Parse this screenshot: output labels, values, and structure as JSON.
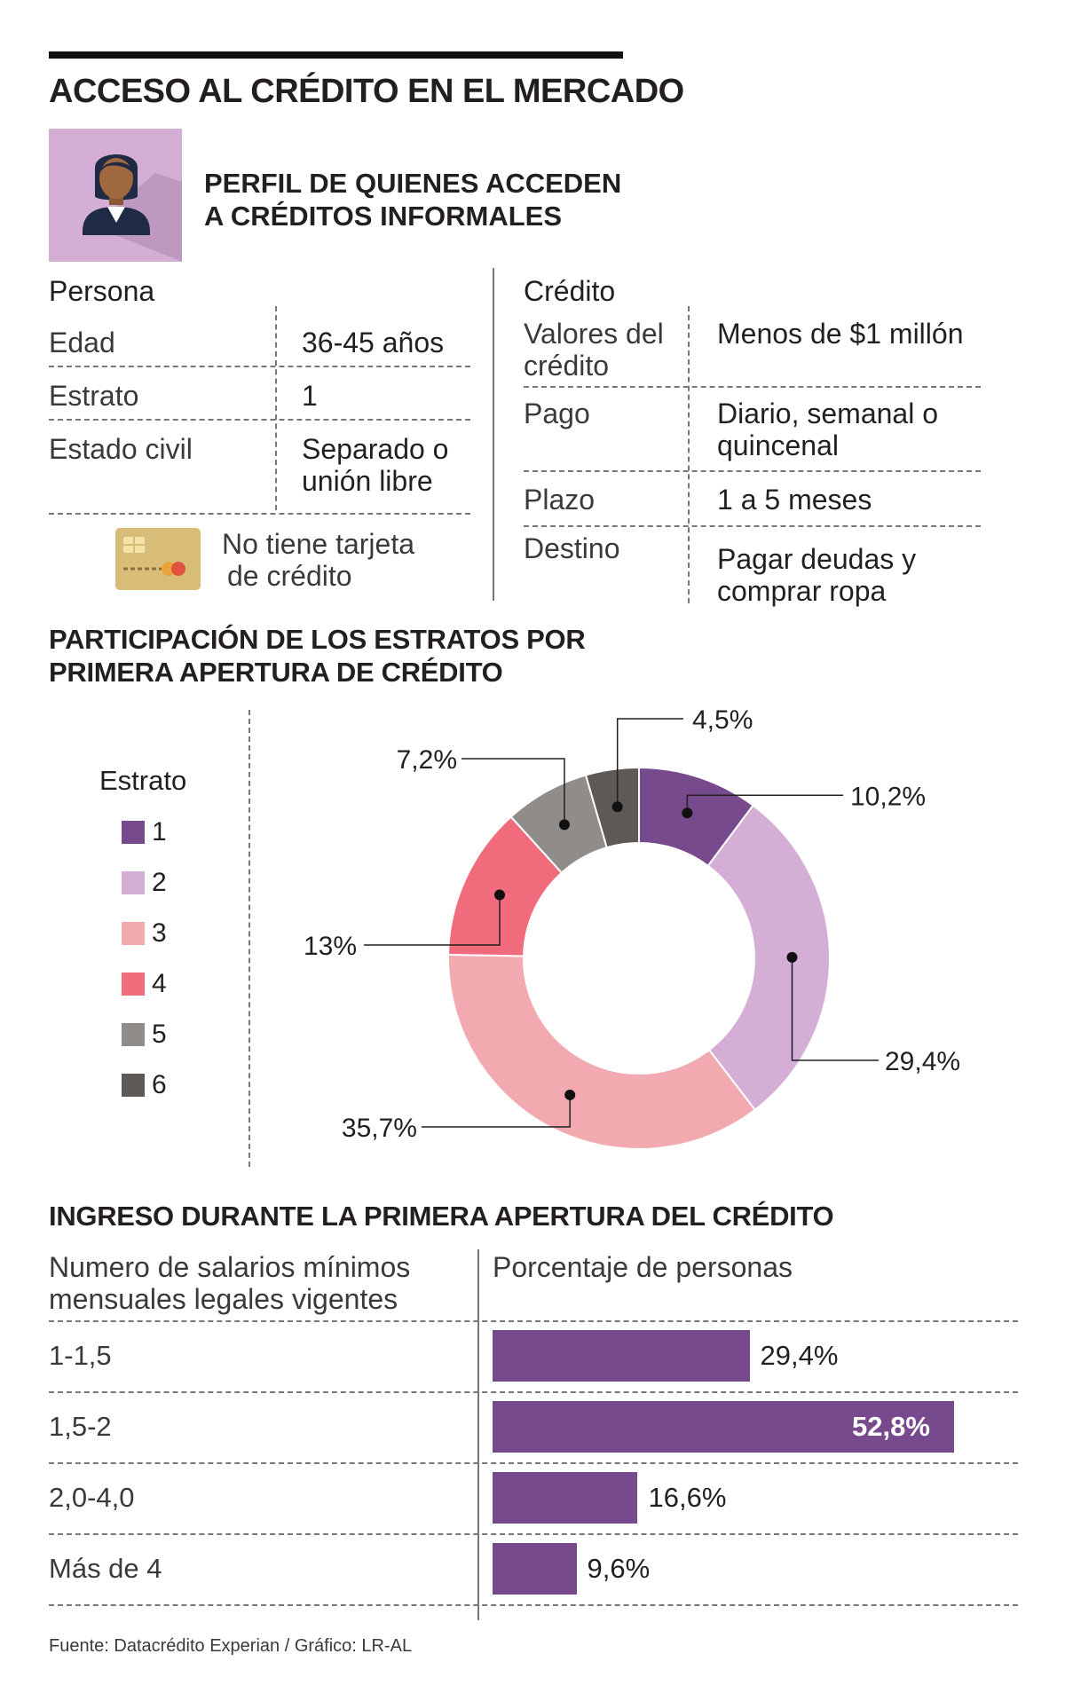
{
  "title": "ACCESO AL CRÉDITO EN EL MERCADO",
  "profile_title_line1": "PERFIL DE QUIENES ACCEDEN",
  "profile_title_line2": "A CRÉDITOS INFORMALES",
  "persona": {
    "heading": "Persona",
    "rows": [
      {
        "label": "Edad",
        "value": "36-45 años"
      },
      {
        "label": "Estrato",
        "value": "1"
      },
      {
        "label": "Estado civil",
        "value_line1": "Separado o",
        "value_line2": "unión libre"
      }
    ],
    "card_text_line1": "No tiene tarjeta",
    "card_text_line2": "de crédito"
  },
  "credito": {
    "heading": "Crédito",
    "rows": [
      {
        "label_line1": "Valores del",
        "label_line2": "crédito",
        "value": "Menos de $1 millón"
      },
      {
        "label": "Pago",
        "value_line1": "Diario, semanal o",
        "value_line2": "quincenal"
      },
      {
        "label": "Plazo",
        "value": "1 a 5 meses"
      },
      {
        "label": "Destino",
        "value_line1": "Pagar deudas y",
        "value_line2": "comprar ropa"
      }
    ]
  },
  "colors": {
    "e1": "#774a8e",
    "e2": "#d4aed4",
    "e3": "#f2aab0",
    "e4": "#f06b7b",
    "e5": "#8f8c8a",
    "e6": "#5e5955",
    "bar": "#774a8e",
    "avatar_bg": "#d4aed4",
    "card": "#d8bd78"
  },
  "chart_data": [
    {
      "type": "pie",
      "title_line1": "PARTICIPACIÓN DE LOS ESTRATOS POR",
      "title_line2": "PRIMERA APERTURA DE CRÉDITO",
      "legend_title": "Estrato",
      "legend_position": "left",
      "categories": [
        "1",
        "2",
        "3",
        "4",
        "5",
        "6"
      ],
      "values": [
        10.2,
        29.4,
        35.7,
        13,
        7.2,
        4.5
      ],
      "labels": [
        "10,2%",
        "29,4%",
        "35,7%",
        "13%",
        "7,2%",
        "4,5%"
      ],
      "donut": true
    },
    {
      "type": "bar",
      "orientation": "horizontal",
      "title": "INGRESO DURANTE LA PRIMERA APERTURA DEL CRÉDITO",
      "category_header_line1": "Numero de salarios mínimos",
      "category_header_line2": "mensuales legales vigentes",
      "value_header": "Porcentaje de personas",
      "categories": [
        "1-1,5",
        "1,5-2",
        "2,0-4,0",
        "Más de 4"
      ],
      "values": [
        29.4,
        52.8,
        16.6,
        9.6
      ],
      "labels": [
        "29,4%",
        "52,8%",
        "16,6%",
        "9,6%"
      ]
    }
  ],
  "source": "Fuente: Datacrédito Experian / Gráfico: LR-AL"
}
